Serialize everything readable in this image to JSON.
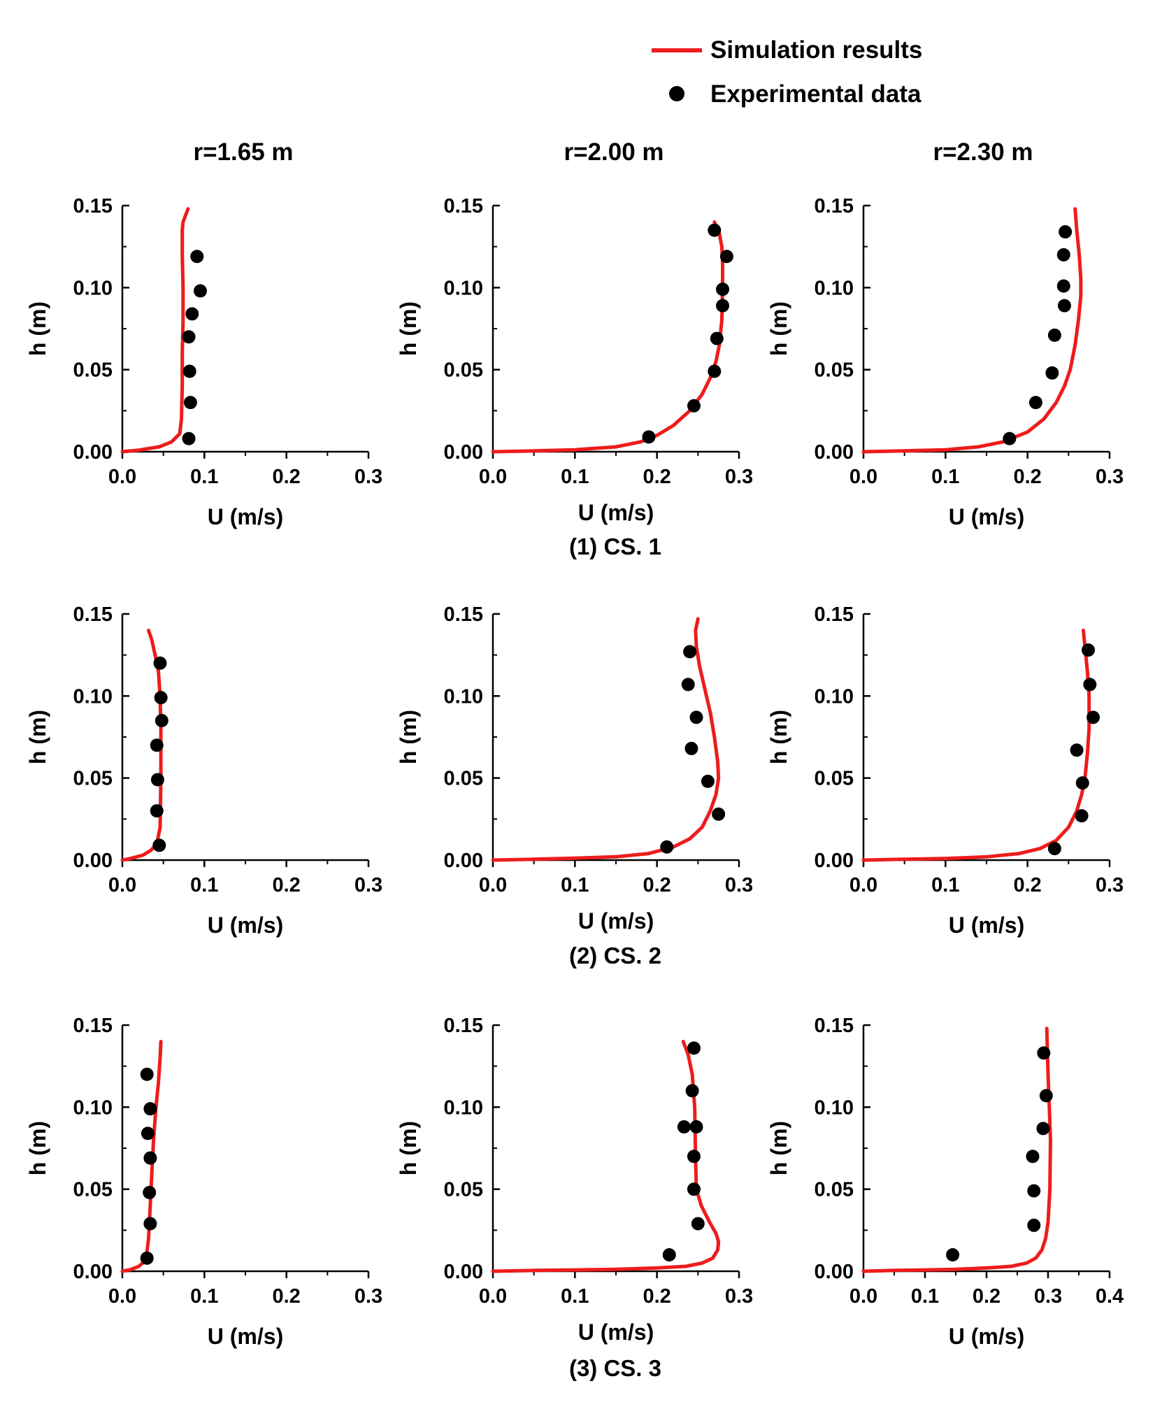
{
  "legend": {
    "simulation_label": "Simulation results",
    "experimental_label": "Experimental data"
  },
  "colors": {
    "simulation": "#ee1c1c",
    "experimental": "#000000",
    "axis": "#000000"
  },
  "column_titles": [
    "r=1.65 m",
    "r=2.00 m",
    "r=2.30 m"
  ],
  "row_captions": [
    "(1) CS. 1",
    "(2) CS. 2",
    "(3) CS. 3"
  ],
  "chart_data": [
    {
      "type": "line+scatter",
      "title": "r=1.65 m",
      "case": "CS. 1",
      "xlabel": "U (m/s)",
      "ylabel": "h (m)",
      "xlim": [
        0,
        0.3
      ],
      "ylim": [
        0,
        0.15
      ],
      "xticks": [
        "0.0",
        "0.1",
        "0.2",
        "0.3"
      ],
      "yticks": [
        "0.00",
        "0.05",
        "0.10",
        "0.15"
      ],
      "series": [
        {
          "name": "Simulation results",
          "x": [
            0,
            0.02,
            0.045,
            0.06,
            0.07,
            0.072,
            0.073,
            0.073,
            0.074,
            0.074,
            0.073,
            0.073,
            0.074,
            0.08
          ],
          "y": [
            0,
            0.001,
            0.003,
            0.006,
            0.011,
            0.02,
            0.04,
            0.06,
            0.08,
            0.1,
            0.12,
            0.135,
            0.14,
            0.148
          ]
        },
        {
          "name": "Experimental data",
          "x": [
            0.081,
            0.083,
            0.082,
            0.081,
            0.085,
            0.095,
            0.091
          ],
          "y": [
            0.008,
            0.03,
            0.049,
            0.07,
            0.084,
            0.098,
            0.119
          ]
        }
      ]
    },
    {
      "type": "line+scatter",
      "title": "r=2.00 m",
      "case": "CS. 1",
      "xlabel": "U (m/s)",
      "ylabel": "h (m)",
      "xlim": [
        0,
        0.3
      ],
      "ylim": [
        0,
        0.15
      ],
      "xticks": [
        "0.0",
        "0.1",
        "0.2",
        "0.3"
      ],
      "yticks": [
        "0.00",
        "0.05",
        "0.10",
        "0.15"
      ],
      "series": [
        {
          "name": "Simulation results",
          "x": [
            0,
            0.05,
            0.1,
            0.15,
            0.18,
            0.2,
            0.22,
            0.24,
            0.255,
            0.265,
            0.272,
            0.276,
            0.279,
            0.28,
            0.28,
            0.279,
            0.276,
            0.27
          ],
          "y": [
            0,
            0.0005,
            0.0012,
            0.003,
            0.006,
            0.01,
            0.016,
            0.025,
            0.035,
            0.045,
            0.055,
            0.065,
            0.08,
            0.1,
            0.115,
            0.125,
            0.133,
            0.14
          ]
        },
        {
          "name": "Experimental data",
          "x": [
            0.19,
            0.245,
            0.27,
            0.273,
            0.28,
            0.28,
            0.285,
            0.27
          ],
          "y": [
            0.009,
            0.028,
            0.049,
            0.069,
            0.089,
            0.099,
            0.119,
            0.135
          ]
        }
      ]
    },
    {
      "type": "line+scatter",
      "title": "r=2.30 m",
      "case": "CS. 1",
      "xlabel": "U (m/s)",
      "ylabel": "h (m)",
      "xlim": [
        0,
        0.3
      ],
      "ylim": [
        0,
        0.15
      ],
      "xticks": [
        "0.0",
        "0.1",
        "0.2",
        "0.3"
      ],
      "yticks": [
        "0.00",
        "0.05",
        "0.10",
        "0.15"
      ],
      "series": [
        {
          "name": "Simulation results",
          "x": [
            0,
            0.05,
            0.1,
            0.14,
            0.17,
            0.2,
            0.22,
            0.235,
            0.245,
            0.252,
            0.258,
            0.262,
            0.265,
            0.265,
            0.263,
            0.26,
            0.258
          ],
          "y": [
            0,
            0.0005,
            0.0012,
            0.003,
            0.006,
            0.012,
            0.02,
            0.03,
            0.04,
            0.05,
            0.065,
            0.08,
            0.095,
            0.105,
            0.12,
            0.135,
            0.148
          ]
        },
        {
          "name": "Experimental data",
          "x": [
            0.178,
            0.21,
            0.23,
            0.233,
            0.245,
            0.244,
            0.244,
            0.246
          ],
          "y": [
            0.008,
            0.03,
            0.048,
            0.071,
            0.089,
            0.101,
            0.12,
            0.134
          ]
        }
      ]
    },
    {
      "type": "line+scatter",
      "title": "r=1.65 m",
      "case": "CS. 2",
      "xlabel": "U (m/s)",
      "ylabel": "h (m)",
      "xlim": [
        0,
        0.3
      ],
      "ylim": [
        0,
        0.15
      ],
      "xticks": [
        "0.0",
        "0.1",
        "0.2",
        "0.3"
      ],
      "yticks": [
        "0.00",
        "0.05",
        "0.10",
        "0.15"
      ],
      "series": [
        {
          "name": "Simulation results",
          "x": [
            0,
            0.01,
            0.025,
            0.035,
            0.042,
            0.046,
            0.047,
            0.047,
            0.046,
            0.044,
            0.04,
            0.036,
            0.032
          ],
          "y": [
            0,
            0.001,
            0.003,
            0.006,
            0.01,
            0.02,
            0.05,
            0.08,
            0.1,
            0.115,
            0.125,
            0.134,
            0.14
          ]
        },
        {
          "name": "Experimental data",
          "x": [
            0.045,
            0.042,
            0.043,
            0.042,
            0.048,
            0.047,
            0.046
          ],
          "y": [
            0.009,
            0.03,
            0.049,
            0.07,
            0.085,
            0.099,
            0.12
          ]
        }
      ]
    },
    {
      "type": "line+scatter",
      "title": "r=2.00 m",
      "case": "CS. 2",
      "xlabel": "U (m/s)",
      "ylabel": "h (m)",
      "xlim": [
        0,
        0.3
      ],
      "ylim": [
        0,
        0.15
      ],
      "xticks": [
        "0.0",
        "0.1",
        "0.2",
        "0.3"
      ],
      "yticks": [
        "0.00",
        "0.05",
        "0.10",
        "0.15"
      ],
      "series": [
        {
          "name": "Simulation results",
          "x": [
            0,
            0.05,
            0.1,
            0.15,
            0.19,
            0.22,
            0.24,
            0.255,
            0.265,
            0.272,
            0.275,
            0.274,
            0.27,
            0.265,
            0.258,
            0.252,
            0.248,
            0.247,
            0.25
          ],
          "y": [
            0,
            0.0005,
            0.0012,
            0.002,
            0.004,
            0.008,
            0.013,
            0.02,
            0.03,
            0.04,
            0.05,
            0.06,
            0.075,
            0.09,
            0.105,
            0.118,
            0.13,
            0.14,
            0.147
          ]
        },
        {
          "name": "Experimental data",
          "x": [
            0.212,
            0.275,
            0.262,
            0.242,
            0.248,
            0.238,
            0.24
          ],
          "y": [
            0.008,
            0.028,
            0.048,
            0.068,
            0.087,
            0.107,
            0.127
          ]
        }
      ]
    },
    {
      "type": "line+scatter",
      "title": "r=2.30 m",
      "case": "CS. 2",
      "xlabel": "U (m/s)",
      "ylabel": "h (m)",
      "xlim": [
        0,
        0.3
      ],
      "ylim": [
        0,
        0.15
      ],
      "xticks": [
        "0.0",
        "0.1",
        "0.2",
        "0.3"
      ],
      "yticks": [
        "0.00",
        "0.05",
        "0.10",
        "0.15"
      ],
      "series": [
        {
          "name": "Simulation results",
          "x": [
            0,
            0.05,
            0.1,
            0.15,
            0.19,
            0.215,
            0.235,
            0.25,
            0.26,
            0.266,
            0.27,
            0.273,
            0.275,
            0.275,
            0.273,
            0.27,
            0.268
          ],
          "y": [
            0,
            0.0005,
            0.001,
            0.002,
            0.004,
            0.007,
            0.012,
            0.02,
            0.03,
            0.04,
            0.05,
            0.065,
            0.08,
            0.1,
            0.115,
            0.13,
            0.14
          ]
        },
        {
          "name": "Experimental data",
          "x": [
            0.233,
            0.266,
            0.267,
            0.26,
            0.28,
            0.276,
            0.274
          ],
          "y": [
            0.007,
            0.027,
            0.047,
            0.067,
            0.087,
            0.107,
            0.128
          ]
        }
      ]
    },
    {
      "type": "line+scatter",
      "title": "r=1.65 m",
      "case": "CS. 3",
      "xlabel": "U (m/s)",
      "ylabel": "h (m)",
      "xlim": [
        0,
        0.3
      ],
      "ylim": [
        0,
        0.15
      ],
      "xticks": [
        "0.0",
        "0.1",
        "0.2",
        "0.3"
      ],
      "yticks": [
        "0.00",
        "0.05",
        "0.10",
        "0.15"
      ],
      "series": [
        {
          "name": "Simulation results",
          "x": [
            0,
            0.01,
            0.02,
            0.027,
            0.03,
            0.032,
            0.034,
            0.036,
            0.038,
            0.041,
            0.044,
            0.046,
            0.047
          ],
          "y": [
            0,
            0.001,
            0.003,
            0.006,
            0.012,
            0.02,
            0.04,
            0.06,
            0.08,
            0.1,
            0.115,
            0.13,
            0.14
          ]
        },
        {
          "name": "Experimental data",
          "x": [
            0.03,
            0.034,
            0.033,
            0.034,
            0.031,
            0.034,
            0.03
          ],
          "y": [
            0.008,
            0.029,
            0.048,
            0.069,
            0.084,
            0.099,
            0.12
          ]
        }
      ]
    },
    {
      "type": "line+scatter",
      "title": "r=2.00 m",
      "case": "CS. 3",
      "xlabel": "U (m/s)",
      "ylabel": "h (m)",
      "xlim": [
        0,
        0.3
      ],
      "ylim": [
        0,
        0.15
      ],
      "xticks": [
        "0.0",
        "0.1",
        "0.2",
        "0.3"
      ],
      "yticks": [
        "0.00",
        "0.05",
        "0.10",
        "0.15"
      ],
      "series": [
        {
          "name": "Simulation results",
          "x": [
            0,
            0.05,
            0.1,
            0.15,
            0.2,
            0.235,
            0.255,
            0.268,
            0.274,
            0.275,
            0.272,
            0.264,
            0.254,
            0.248,
            0.247,
            0.246,
            0.243,
            0.238,
            0.232
          ],
          "y": [
            0,
            0.0005,
            0.0008,
            0.0012,
            0.002,
            0.003,
            0.005,
            0.008,
            0.013,
            0.018,
            0.023,
            0.03,
            0.04,
            0.05,
            0.07,
            0.1,
            0.12,
            0.132,
            0.14
          ]
        },
        {
          "name": "Experimental data",
          "x": [
            0.215,
            0.25,
            0.245,
            0.245,
            0.233,
            0.248,
            0.243,
            0.245
          ],
          "y": [
            0.01,
            0.029,
            0.05,
            0.07,
            0.088,
            0.088,
            0.11,
            0.136
          ]
        }
      ]
    },
    {
      "type": "line+scatter",
      "title": "r=2.30 m",
      "case": "CS. 3",
      "xlabel": "U (m/s)",
      "ylabel": "h (m)",
      "xlim": [
        0,
        0.4
      ],
      "ylim": [
        0,
        0.15
      ],
      "xticks": [
        "0.0",
        "0.1",
        "0.2",
        "0.3",
        "0.4"
      ],
      "yticks": [
        "0.00",
        "0.05",
        "0.10",
        "0.15"
      ],
      "series": [
        {
          "name": "Simulation results",
          "x": [
            0,
            0.05,
            0.1,
            0.15,
            0.2,
            0.24,
            0.265,
            0.28,
            0.29,
            0.296,
            0.3,
            0.303,
            0.304,
            0.302,
            0.3,
            0.298
          ],
          "y": [
            0,
            0.0005,
            0.0008,
            0.0012,
            0.002,
            0.003,
            0.005,
            0.008,
            0.013,
            0.02,
            0.03,
            0.05,
            0.08,
            0.1,
            0.12,
            0.148
          ]
        },
        {
          "name": "Experimental data",
          "x": [
            0.145,
            0.277,
            0.277,
            0.275,
            0.292,
            0.297,
            0.293
          ],
          "y": [
            0.01,
            0.028,
            0.049,
            0.07,
            0.087,
            0.107,
            0.133
          ]
        }
      ]
    }
  ]
}
